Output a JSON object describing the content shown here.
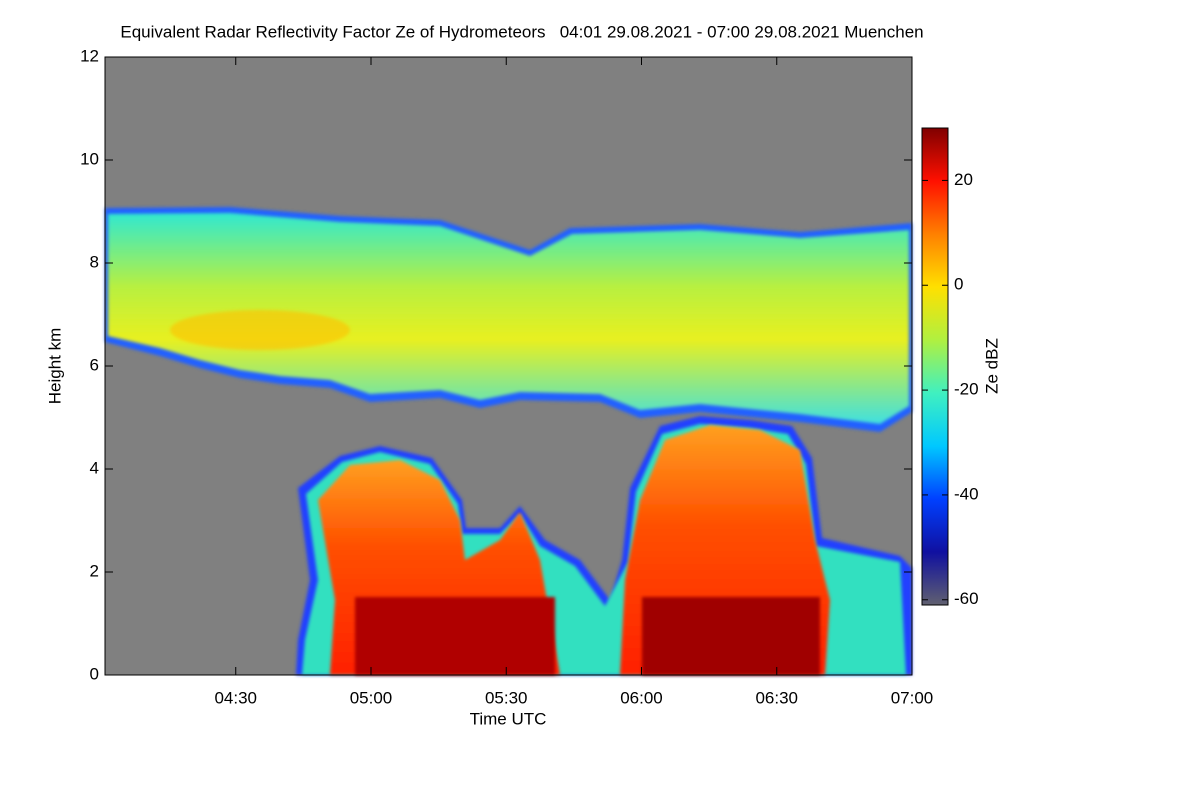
{
  "chart_data": {
    "type": "heatmap",
    "title": "Equivalent Radar Reflectivity Factor Ze of Hydrometeors   04:01 29.08.2021 - 07:00 29.08.2021 Muenchen",
    "x_label": "Time UTC",
    "y_label": "Height km",
    "colorbar_label": "Ze dBZ",
    "xlim": [
      "04:01",
      "07:00"
    ],
    "xticks": [
      "04:30",
      "05:00",
      "05:30",
      "06:00",
      "06:30",
      "07:00"
    ],
    "ylim": [
      0,
      12
    ],
    "yticks": [
      0,
      2,
      4,
      6,
      8,
      10,
      12
    ],
    "clim": [
      -61,
      30
    ],
    "cticks": [
      -60,
      -40,
      -20,
      0,
      20
    ],
    "colorscale": [
      "#606070",
      "#1010a0",
      "#0040ff",
      "#00c8ff",
      "#40f0c0",
      "#b0f040",
      "#ffe000",
      "#ff8000",
      "#ff1000",
      "#800000"
    ],
    "missing_color": "#808080"
  }
}
